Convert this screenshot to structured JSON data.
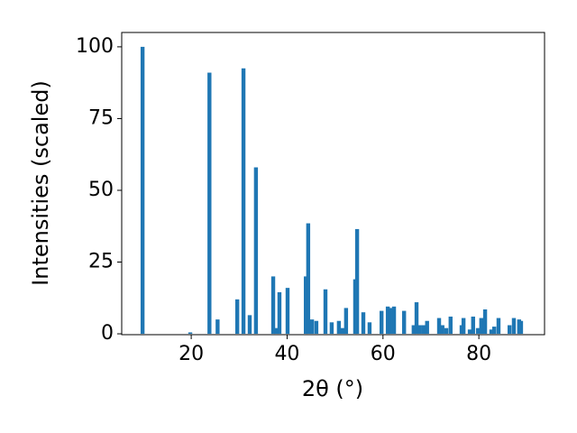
{
  "chart_data": {
    "type": "bar",
    "xlabel": "2θ (°)",
    "ylabel": "Intensities (scaled)",
    "color": "#1f77b4",
    "grid": false,
    "x": [
      9.85,
      19.8,
      23.8,
      25.5,
      29.6,
      30.9,
      32.2,
      33.5,
      37.1,
      37.7,
      38.4,
      40.1,
      43.9,
      44.4,
      45.2,
      46.1,
      48.0,
      49.3,
      50.8,
      51.6,
      52.3,
      54.2,
      54.6,
      55.9,
      57.2,
      59.7,
      61.0,
      61.5,
      62.3,
      64.4,
      66.4,
      67.0,
      67.7,
      68.5,
      69.2,
      71.7,
      72.4,
      73.2,
      74.1,
      76.4,
      76.8,
      78.1,
      78.8,
      79.8,
      80.5,
      81.3,
      82.6,
      83.2,
      84.1,
      86.4,
      87.3,
      88.4,
      88.8
    ],
    "values": [
      100,
      0.5,
      91,
      5,
      12,
      92.5,
      6.5,
      58,
      20,
      2,
      14.5,
      16,
      20,
      38.5,
      5,
      4.5,
      15.5,
      4,
      4.5,
      2,
      9,
      19,
      36.5,
      7.5,
      4,
      8,
      9.5,
      9,
      9.5,
      8,
      3,
      11,
      3,
      3,
      4.5,
      5.5,
      3,
      2,
      6,
      3,
      5.5,
      1.5,
      6,
      2,
      5.5,
      8.5,
      1.5,
      2.5,
      5.5,
      3,
      5.5,
      5,
      4.5
    ],
    "xlim": [
      5.5,
      93.7
    ],
    "ylim": [
      -0.3,
      105
    ],
    "xticks": [
      20,
      40,
      60,
      80
    ],
    "yticks": [
      0,
      25,
      50,
      75,
      100
    ]
  }
}
